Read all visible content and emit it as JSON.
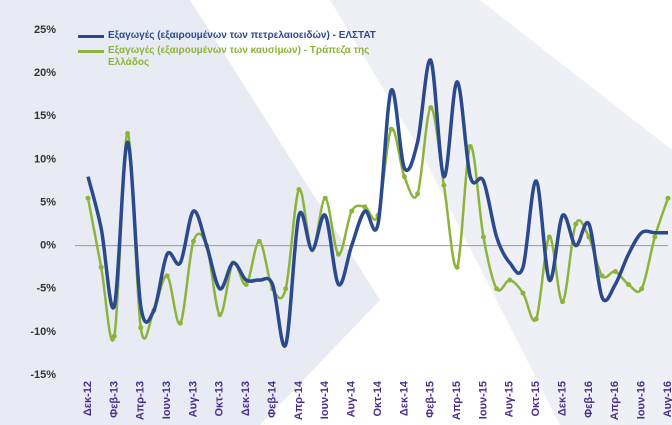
{
  "chart_data": {
    "type": "line",
    "categories": [
      "Δεκ-12",
      null,
      "Φεβ-13",
      null,
      "Απρ-13",
      null,
      "Ιουν-13",
      null,
      "Αυγ-13",
      null,
      "Οκτ-13",
      null,
      "Δεκ-13",
      null,
      "Φεβ-14",
      null,
      "Απρ-14",
      null,
      "Ιουν-14",
      null,
      "Αυγ-14",
      null,
      "Οκτ-14",
      null,
      "Δεκ-14",
      null,
      "Φεβ-15",
      null,
      "Απρ-15",
      null,
      "Ιουν-15",
      null,
      "Αυγ-15",
      null,
      "Οκτ-15",
      null,
      "Δεκ-15",
      null,
      "Φεβ-16",
      null,
      "Απρ-16",
      null,
      "Ιουν-16",
      null,
      "Αυγ-16"
    ],
    "series": [
      {
        "name": "Εξαγωγές (εξαιρουμένων των πετρελαιοειδών) - ΕΛΣΤΑΤ",
        "color": "#2b4a8e",
        "markers": false,
        "values": [
          8,
          2,
          -7,
          12,
          -7,
          -7.5,
          -1,
          -2,
          4,
          0,
          -5,
          -2,
          -4,
          -4,
          -4.5,
          -11.5,
          3.5,
          -0.5,
          3.5,
          -4.5,
          0,
          4,
          2.5,
          18,
          9,
          12,
          21.5,
          8,
          19,
          8,
          7.5,
          1,
          -2,
          -2.5,
          7.5,
          -4,
          3.5,
          0,
          2.5,
          -6,
          -4.5,
          -1,
          1.5,
          1.5,
          1.5
        ]
      },
      {
        "name": "Εξαγωγές (εξαιρουμένων των καυσίμων) - Τράπεζα της Ελλάδος",
        "color": "#8cb43c",
        "markers": true,
        "values": [
          5.5,
          -2.5,
          -10.5,
          13,
          -9.5,
          -7.5,
          -3.5,
          -9,
          0.5,
          0,
          -8,
          -2,
          -4.5,
          0.5,
          -5,
          -5,
          6.5,
          -0.5,
          5.5,
          -1,
          4,
          4.5,
          3.5,
          13.5,
          8,
          6,
          16,
          7,
          -2.5,
          11.5,
          1,
          -5,
          -4,
          -5.5,
          -8.5,
          1,
          -6.5,
          2.5,
          1,
          -3.5,
          -3,
          -4.5,
          -5,
          1,
          5.5
        ]
      }
    ],
    "ylim": [
      -15,
      25
    ],
    "yticks": [
      {
        "value": 25,
        "label": "25%"
      },
      {
        "value": 20,
        "label": "20%"
      },
      {
        "value": 15,
        "label": "15%"
      },
      {
        "value": 10,
        "label": "10%"
      },
      {
        "value": 5,
        "label": "5%"
      },
      {
        "value": 0,
        "label": "0%"
      },
      {
        "value": -5,
        "label": "-5%"
      },
      {
        "value": -10,
        "label": "-10%"
      },
      {
        "value": -15,
        "label": "-15%"
      }
    ],
    "grid": false,
    "legend": "top-left"
  }
}
